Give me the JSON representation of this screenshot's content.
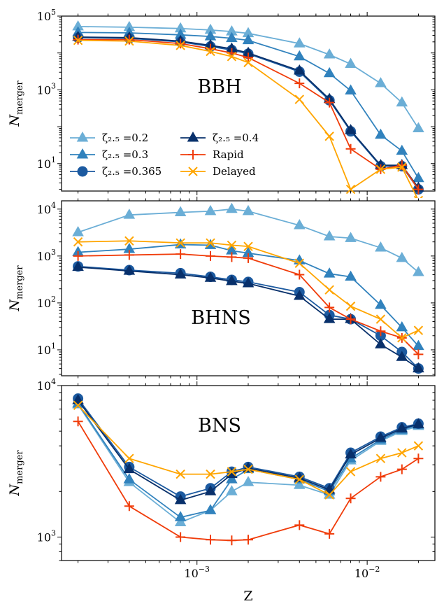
{
  "chart_data": {
    "type": "line",
    "x": [
      0.0002,
      0.0004,
      0.0008,
      0.0012,
      0.0016,
      0.002,
      0.004,
      0.006,
      0.008,
      0.012,
      0.016,
      0.02
    ],
    "xlabel": "Z",
    "xscale": "log",
    "xlim": [
      0.00016,
      0.025
    ],
    "x_ticks": [
      {
        "value": 0.001,
        "base": "10",
        "exp": "−3"
      },
      {
        "value": 0.01,
        "base": "10",
        "exp": "−2"
      }
    ],
    "legend": {
      "placement": "lower-left of top panel",
      "entries": [
        {
          "key": "z02",
          "text": "ζ₂.₅ =0.2"
        },
        {
          "key": "z03",
          "text": "ζ₂.₅ =0.3"
        },
        {
          "key": "z0365",
          "text": "ζ₂.₅ =0.365"
        },
        {
          "key": "z04",
          "text": "ζ₂.₅ =0.4"
        },
        {
          "key": "rapid",
          "text": "Rapid"
        },
        {
          "key": "delayed",
          "text": "Delayed"
        }
      ]
    },
    "series_styles": {
      "z02": {
        "color": "#6baed6",
        "marker": "triangle"
      },
      "z03": {
        "color": "#3182bd",
        "marker": "triangle"
      },
      "z0365": {
        "color": "#1c5aa0",
        "marker": "circle"
      },
      "z04": {
        "color": "#08306b",
        "marker": "triangle"
      },
      "rapid": {
        "color": "#f03c0a",
        "marker": "plus"
      },
      "delayed": {
        "color": "#ffa500",
        "marker": "x"
      }
    },
    "panels": [
      {
        "title": "BBH",
        "ylabel": "N",
        "ylabel_sub": "merger",
        "yscale": "log",
        "ylim": [
          1.8,
          100000
        ],
        "y_ticks": [
          {
            "value": 10,
            "base": "10",
            "exp": "1"
          },
          {
            "value": 1000,
            "base": "10",
            "exp": "3"
          },
          {
            "value": 100000,
            "base": "10",
            "exp": "5"
          }
        ],
        "series": [
          {
            "key": "z02",
            "values": [
              52000,
              50000,
              46000,
              42000,
              38000,
              34000,
              18000,
              9000,
              5000,
              1500,
              450,
              90
            ]
          },
          {
            "key": "z03",
            "values": [
              36000,
              35000,
              31000,
              28000,
              25000,
              22000,
              8000,
              2800,
              950,
              60,
              22,
              4
            ]
          },
          {
            "key": "z0365",
            "values": [
              26000,
              25000,
              20000,
              15000,
              12000,
              9500,
              3100,
              520,
              75,
              8.5,
              8.5,
              2
            ]
          },
          {
            "key": "z04",
            "values": [
              27000,
              26000,
              21000,
              16000,
              13000,
              10000,
              3300,
              560,
              80,
              9,
              9,
              2.2
            ]
          },
          {
            "key": "rapid",
            "values": [
              23000,
              23000,
              18000,
              13000,
              10000,
              7500,
              1500,
              450,
              25,
              7,
              9,
              2
            ]
          },
          {
            "key": "delayed",
            "values": [
              22000,
              21000,
              16000,
              11000,
              8000,
              5500,
              550,
              55,
              2,
              7,
              8,
              1
            ]
          }
        ]
      },
      {
        "title": "BHNS",
        "ylabel": "N",
        "ylabel_sub": "merger",
        "yscale": "log",
        "ylim": [
          2.8,
          15000
        ],
        "y_ticks": [
          {
            "value": 10,
            "base": "10",
            "exp": "1"
          },
          {
            "value": 100,
            "base": "10",
            "exp": "2"
          },
          {
            "value": 1000,
            "base": "10",
            "exp": "3"
          },
          {
            "value": 10000,
            "base": "10",
            "exp": "4"
          }
        ],
        "series": [
          {
            "key": "z02",
            "values": [
              3200,
              7500,
              8500,
              9000,
              10000,
              9000,
              4500,
              2600,
              2400,
              1500,
              900,
              450
            ]
          },
          {
            "key": "z03",
            "values": [
              1200,
              1400,
              1750,
              1700,
              1300,
              1150,
              800,
              420,
              360,
              90,
              30,
              12
            ]
          },
          {
            "key": "z0365",
            "values": [
              600,
              500,
              430,
              360,
              310,
              280,
              170,
              55,
              45,
              20,
              9,
              4
            ]
          },
          {
            "key": "z04",
            "values": [
              580,
              480,
              400,
              340,
              290,
              260,
              140,
              45,
              45,
              13,
              7,
              4
            ]
          },
          {
            "key": "rapid",
            "values": [
              1000,
              1050,
              1100,
              1000,
              950,
              900,
              400,
              80,
              45,
              25,
              18,
              8
            ]
          },
          {
            "key": "delayed",
            "values": [
              2000,
              2100,
              1900,
              1900,
              1700,
              1600,
              700,
              190,
              85,
              45,
              18,
              26
            ]
          }
        ]
      },
      {
        "title": "BNS",
        "ylabel": "N",
        "ylabel_sub": "merger",
        "yscale": "log",
        "ylim": [
          700,
          10000
        ],
        "y_ticks": [
          {
            "value": 1000,
            "base": "10",
            "exp": "3"
          },
          {
            "value": 10000,
            "base": "10",
            "exp": "4"
          }
        ],
        "series": [
          {
            "key": "z02",
            "values": [
              7500,
              2300,
              1250,
              1500,
              2000,
              2300,
              2200,
              1900,
              3200,
              4300,
              5000,
              5400
            ]
          },
          {
            "key": "z03",
            "values": [
              7600,
              2400,
              1350,
              1500,
              2400,
              2800,
              2400,
              2000,
              3300,
              4400,
              5100,
              5500
            ]
          },
          {
            "key": "z0365",
            "values": [
              8200,
              2900,
              1850,
              2100,
              2700,
              2900,
              2500,
              2100,
              3600,
              4600,
              5300,
              5600
            ]
          },
          {
            "key": "z04",
            "values": [
              8000,
              2800,
              1750,
              2000,
              2600,
              2850,
              2450,
              2050,
              3500,
              4500,
              5200,
              5550
            ]
          },
          {
            "key": "rapid",
            "values": [
              5800,
              1600,
              1000,
              960,
              950,
              960,
              1200,
              1050,
              1800,
              2500,
              2800,
              3300
            ]
          },
          {
            "key": "delayed",
            "values": [
              7400,
              3300,
              2600,
              2600,
              2700,
              2800,
              2400,
              1900,
              2700,
              3300,
              3600,
              4000
            ]
          }
        ]
      }
    ]
  }
}
